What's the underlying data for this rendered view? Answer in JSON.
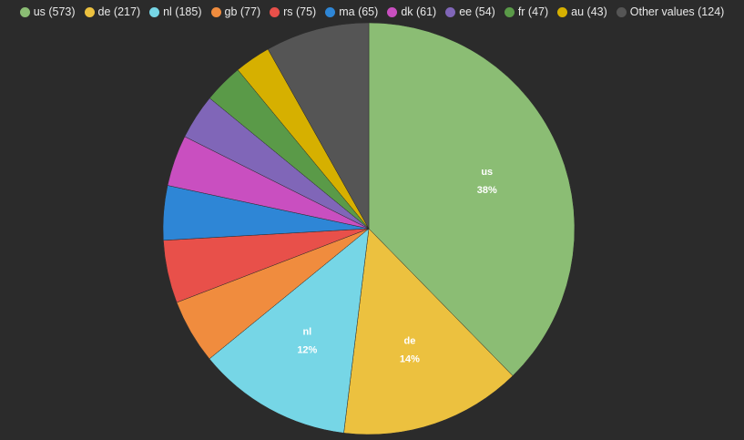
{
  "chart_data": {
    "type": "pie",
    "legend_position": "top",
    "slices": [
      {
        "label": "us",
        "value": 573,
        "color": "#8bbd74",
        "percent_label": "38%"
      },
      {
        "label": "de",
        "value": 217,
        "color": "#ecc13f",
        "percent_label": "14%"
      },
      {
        "label": "nl",
        "value": 185,
        "color": "#76d6e6",
        "percent_label": "12%"
      },
      {
        "label": "gb",
        "value": 77,
        "color": "#f08c3e"
      },
      {
        "label": "rs",
        "value": 75,
        "color": "#e8504a"
      },
      {
        "label": "ma",
        "value": 65,
        "color": "#2e86d6"
      },
      {
        "label": "dk",
        "value": 61,
        "color": "#c94fc0"
      },
      {
        "label": "ee",
        "value": 54,
        "color": "#8066b8"
      },
      {
        "label": "fr",
        "value": 47,
        "color": "#5a9a48"
      },
      {
        "label": "au",
        "value": 43,
        "color": "#d6b000"
      },
      {
        "label": "Other values",
        "value": 124,
        "color": "#555555"
      }
    ]
  }
}
